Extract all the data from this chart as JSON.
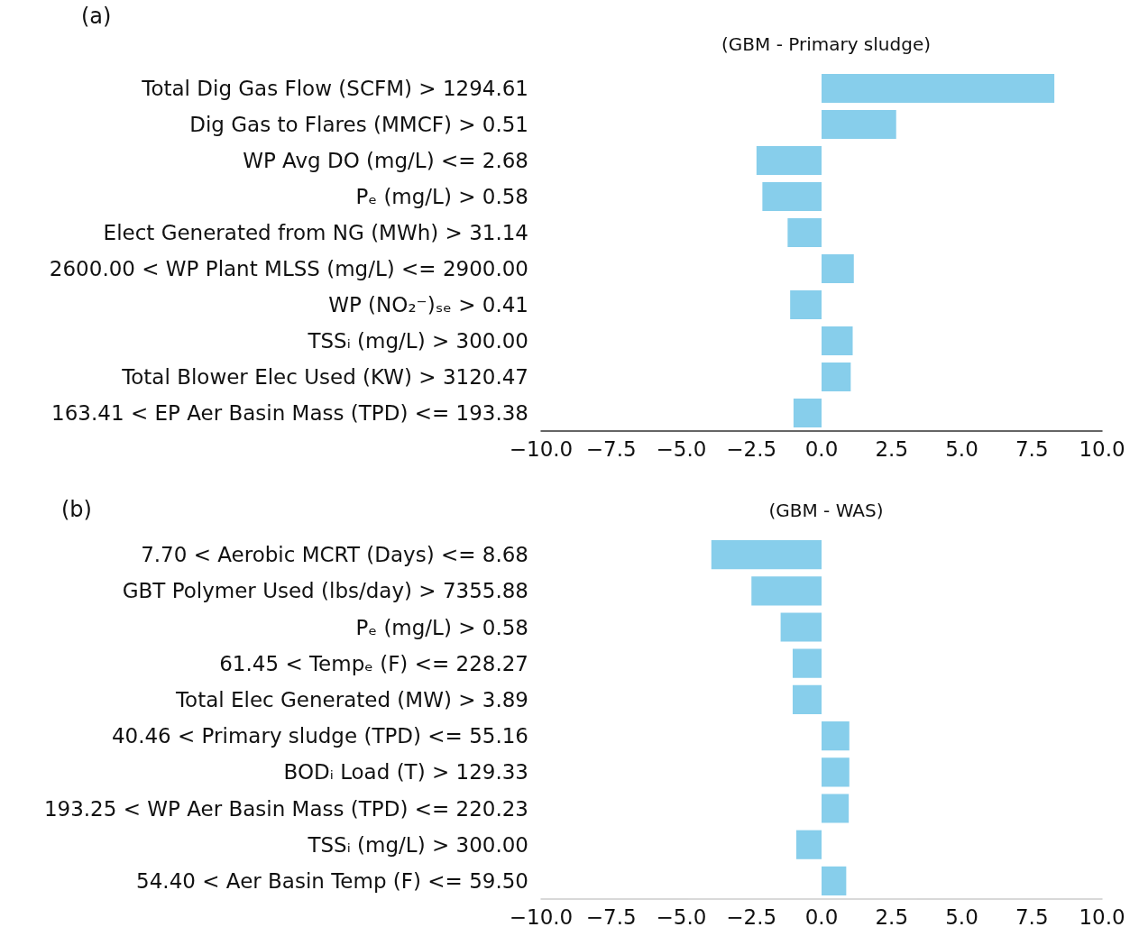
{
  "chart_data": [
    {
      "type": "bar",
      "orientation": "horizontal",
      "title": "(GBM - Primary sludge)",
      "annotations": [
        "(a)"
      ],
      "categories": [
        "Total Dig Gas Flow (SCFM) > 1294.61",
        "Dig Gas to Flares (MMCF) > 0.51",
        "WP Avg DO (mg/L) <= 2.68",
        "Pₑ (mg/L) > 0.58",
        "Elect Generated from NG (MWh) > 31.14",
        "2600.00 < WP Plant MLSS (mg/L) <= 2900.00",
        "WP (NO₂⁻)ₛₑ > 0.41",
        "TSSᵢ (mg/L) > 300.00",
        "Total Blower Elec Used (KW) > 3120.47",
        "163.41 < EP Aer Basin Mass (TPD) <= 193.38"
      ],
      "values": [
        8.3,
        2.66,
        -2.32,
        -2.11,
        -1.21,
        1.15,
        -1.12,
        1.11,
        1.04,
        -1.0
      ],
      "color": "#87ceeb",
      "xlim": [
        -10,
        10
      ],
      "xticks": [
        {
          "value": -10,
          "label": "−10.0"
        },
        {
          "value": -7.5,
          "label": "−7.5"
        },
        {
          "value": -5,
          "label": "−5.0"
        },
        {
          "value": -2.5,
          "label": "−2.5"
        },
        {
          "value": 0,
          "label": "0.0"
        },
        {
          "value": 2.5,
          "label": "2.5"
        },
        {
          "value": 5,
          "label": "5.0"
        },
        {
          "value": 7.5,
          "label": "7.5"
        },
        {
          "value": 10,
          "label": "10.0"
        }
      ]
    },
    {
      "type": "bar",
      "orientation": "horizontal",
      "title": "(GBM - WAS)",
      "annotations": [
        "(b)"
      ],
      "categories": [
        "7.70 < Aerobic MCRT (Days) <= 8.68",
        "GBT Polymer Used (lbs/day) > 7355.88",
        "Pₑ (mg/L) > 0.58",
        "61.45 < Tempₑ (F) <= 228.27",
        "Total Elec Generated (MW) > 3.89",
        "40.46 < Primary sludge (TPD) <= 55.16",
        "BODᵢ Load (T) > 129.33",
        "193.25 < WP Aer Basin Mass (TPD) <= 220.23",
        "TSSᵢ (mg/L) > 300.00",
        "54.40 < Aer Basin Temp (F) <= 59.50"
      ],
      "values": [
        -3.93,
        -2.5,
        -1.46,
        -1.03,
        -1.03,
        0.99,
        0.99,
        0.97,
        -0.9,
        0.88
      ],
      "color": "#87ceeb",
      "xlim": [
        -10,
        10
      ],
      "xticks": [
        {
          "value": -10,
          "label": "−10.0"
        },
        {
          "value": -7.5,
          "label": "−7.5"
        },
        {
          "value": -5,
          "label": "−5.0"
        },
        {
          "value": -2.5,
          "label": "−2.5"
        },
        {
          "value": 0,
          "label": "0.0"
        },
        {
          "value": 2.5,
          "label": "2.5"
        },
        {
          "value": 5,
          "label": "5.0"
        },
        {
          "value": 7.5,
          "label": "7.5"
        },
        {
          "value": 10,
          "label": "10.0"
        }
      ]
    }
  ]
}
